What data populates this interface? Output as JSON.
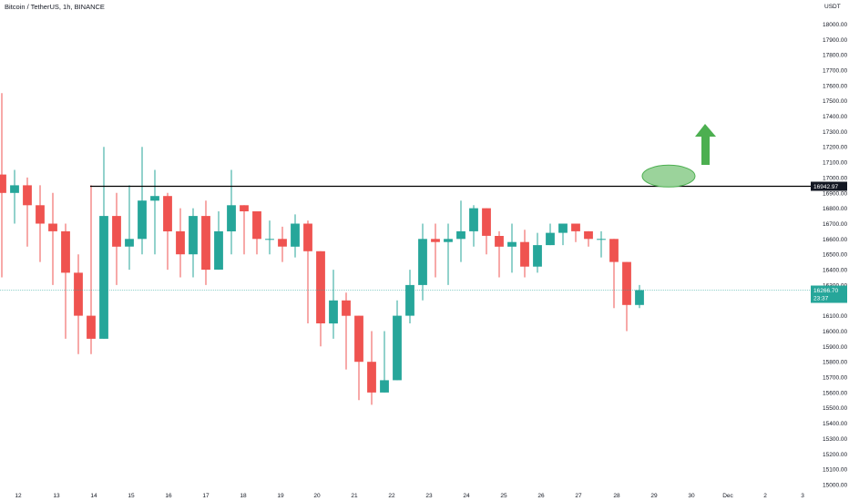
{
  "colors": {
    "up": "#26a69a",
    "down": "#ef5350",
    "level_line": "#000000",
    "current_price_line": "#26a69a",
    "ellipse_fill": "#9bd39b",
    "ellipse_stroke": "#4caf50",
    "arrow": "#4caf50"
  },
  "chart_data": {
    "type": "candlestick",
    "title": "Bitcoin / TetherUS, 1h, BINANCE",
    "currency_label": "USDT",
    "x_tick_labels": [
      "12",
      "13",
      "14",
      "15",
      "16",
      "17",
      "18",
      "19",
      "20",
      "21",
      "22",
      "23",
      "24",
      "25",
      "26",
      "27",
      "28",
      "29",
      "30",
      "Dec",
      "2",
      "3"
    ],
    "y_tick_values": [
      15000,
      15100,
      15200,
      15300,
      15400,
      15500,
      15600,
      15700,
      15800,
      15900,
      16000,
      16100,
      16200,
      16300,
      16400,
      16500,
      16600,
      16700,
      16800,
      16900,
      17000,
      17100,
      17200,
      17300,
      17400,
      17500,
      17600,
      17700,
      17800,
      17900,
      18000
    ],
    "ylim": [
      14985,
      18055
    ],
    "horizontal_level": {
      "value": 16942.97,
      "label": "16942.97"
    },
    "current_price": {
      "value": 16266.7,
      "label": "16266.70",
      "countdown": "23:37"
    },
    "annotations": [
      {
        "type": "ellipse",
        "value_center": 17010,
        "x_position": "day 29-30"
      },
      {
        "type": "arrow-up",
        "x_position": "day 30",
        "color": "green"
      }
    ],
    "series": [
      {
        "closes": [
          16900,
          16950,
          16820,
          16700,
          16650,
          16380,
          16100,
          15950,
          16750,
          16550,
          16600,
          16850,
          16880,
          16650,
          16500,
          16750,
          16400,
          16650,
          16820,
          16780,
          16600,
          16600,
          16550,
          16700,
          16520,
          16050,
          16200,
          16100,
          15800,
          15600,
          15680,
          16100,
          16300,
          16600,
          16580,
          16600,
          16650,
          16800,
          16620,
          16550,
          16580,
          16420,
          16560,
          16640,
          16700,
          16650,
          16600,
          16600,
          16450,
          16170,
          16266.7
        ],
        "highs": [
          17550,
          17050,
          17000,
          16950,
          16900,
          16700,
          16500,
          16950,
          17200,
          16900,
          16950,
          17200,
          17050,
          16900,
          16800,
          16800,
          16850,
          16780,
          17050,
          16800,
          16760,
          16720,
          16680,
          16760,
          16720,
          16500,
          16400,
          16250,
          16100,
          16000,
          16000,
          16200,
          16400,
          16700,
          16700,
          16700,
          16850,
          16820,
          16760,
          16650,
          16700,
          16660,
          16640,
          16700,
          16700,
          16670,
          16650,
          16650,
          16550,
          16300,
          16300
        ],
        "lows": [
          16350,
          16700,
          16550,
          16450,
          16300,
          15950,
          15850,
          15850,
          16150,
          16300,
          16400,
          16500,
          16500,
          16400,
          16350,
          16350,
          16300,
          16400,
          16500,
          16500,
          16500,
          16500,
          16450,
          16480,
          16050,
          15900,
          15950,
          15750,
          15550,
          15520,
          15600,
          15700,
          16050,
          16200,
          16350,
          16300,
          16450,
          16550,
          16500,
          16350,
          16380,
          16350,
          16380,
          16560,
          16560,
          16580,
          16550,
          16480,
          16150,
          16000,
          16150
        ]
      }
    ]
  }
}
